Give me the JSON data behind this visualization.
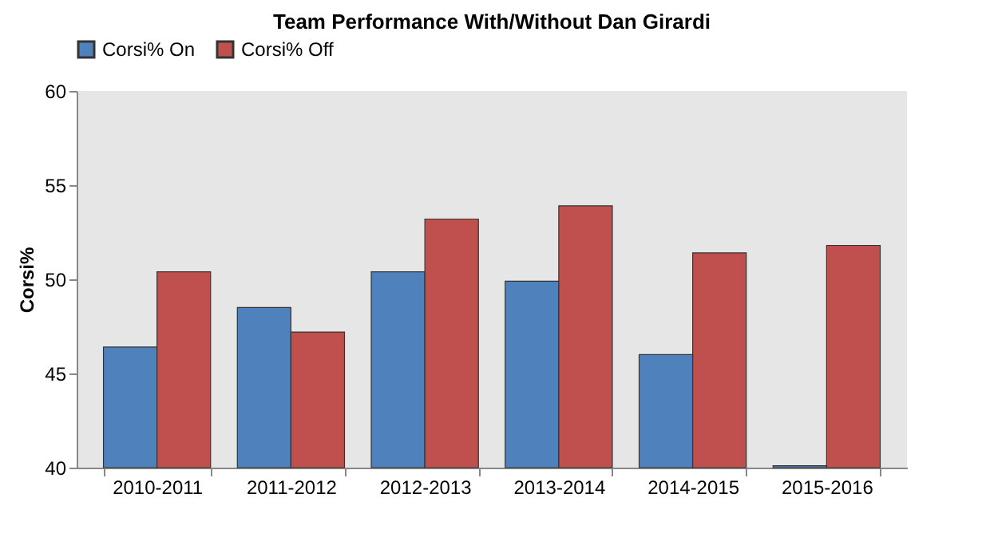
{
  "chart_data": {
    "type": "bar",
    "title": "Team Performance With/Without Dan Girardi",
    "ylabel": "Corsi%",
    "categories": [
      "2010-2011",
      "2011-2012",
      "2012-2013",
      "2013-2014",
      "2014-2015",
      "2015-2016"
    ],
    "series": [
      {
        "name": "Corsi% On",
        "color": "#4f81bd",
        "values": [
          46.4,
          48.5,
          50.4,
          49.9,
          46.0,
          40.1
        ]
      },
      {
        "name": "Corsi% Off",
        "color": "#c0504d",
        "values": [
          50.4,
          47.2,
          53.2,
          53.9,
          51.4,
          51.8
        ]
      }
    ],
    "ylim": [
      40,
      60
    ],
    "yticks": [
      40,
      45,
      50,
      55,
      60
    ],
    "grid": false,
    "legend": "top"
  }
}
